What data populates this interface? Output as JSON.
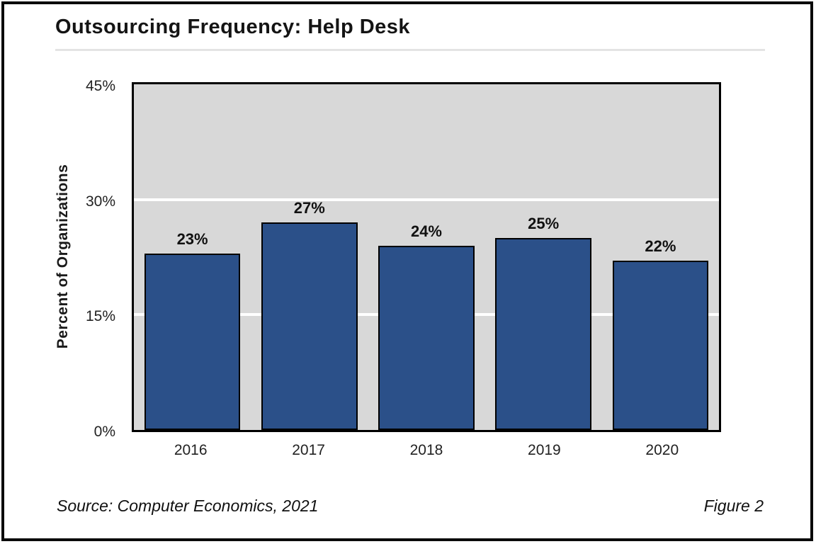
{
  "header": {
    "title": "Outsourcing Frequency: Help Desk"
  },
  "footer": {
    "source": "Source: Computer Economics, 2021",
    "figure_label": "Figure 2"
  },
  "chart_data": {
    "type": "bar",
    "title": "Outsourcing Frequency: Help Desk",
    "categories": [
      "2016",
      "2017",
      "2018",
      "2019",
      "2020"
    ],
    "values": [
      23,
      27,
      24,
      25,
      22
    ],
    "value_labels": [
      "23%",
      "27%",
      "24%",
      "25%",
      "22%"
    ],
    "xlabel": "",
    "ylabel": "Percent of Organizations",
    "ylim": [
      0,
      45
    ],
    "yticks": [
      0,
      15,
      30,
      45
    ],
    "ytick_labels": [
      "0%",
      "15%",
      "30%",
      "45%"
    ],
    "gridline_values": [
      15,
      30
    ],
    "grid": "horizontal",
    "legend": "none",
    "colors": {
      "bar_fill": "#2b5089",
      "bar_border": "#000000",
      "plot_background": "#d8d8d8",
      "gridline": "#ffffff",
      "frame_border": "#0a0a0a"
    }
  }
}
